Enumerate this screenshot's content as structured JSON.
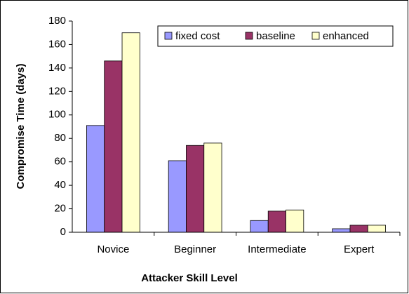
{
  "chart_data": {
    "type": "bar",
    "x_label": "Attacker Skill Level",
    "y_label": "Compromise Time (days)",
    "categories": [
      "Novice",
      "Beginner",
      "Intermediate",
      "Expert"
    ],
    "series": [
      {
        "name": "fixed cost",
        "color": "#9999ff",
        "values": [
          91,
          61,
          10,
          3
        ]
      },
      {
        "name": "baseline",
        "color": "#993366",
        "values": [
          146,
          74,
          18,
          6
        ]
      },
      {
        "name": "enhanced",
        "color": "#ffffcc",
        "values": [
          170,
          76,
          19,
          6
        ]
      }
    ],
    "ylim": [
      0,
      180
    ],
    "yticks": [
      0,
      20,
      40,
      60,
      80,
      100,
      120,
      140,
      160,
      180
    ],
    "grid": false,
    "legend": "top-right"
  }
}
